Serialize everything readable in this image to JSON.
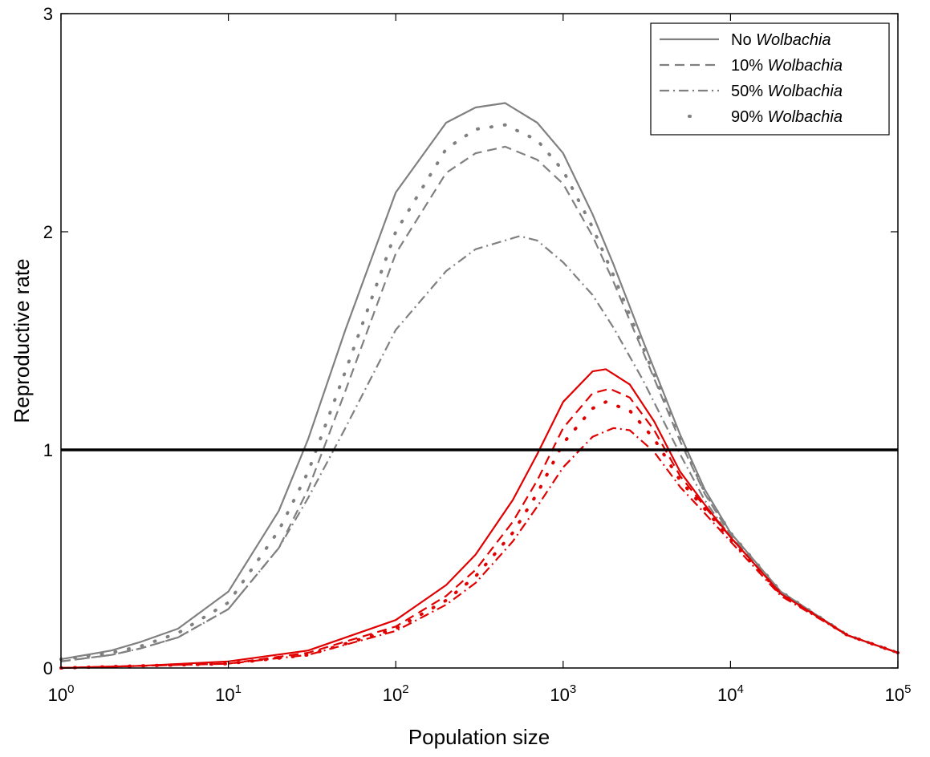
{
  "chart_data": {
    "type": "line",
    "xlabel": "Population size",
    "ylabel": "Reproductive rate",
    "xscale": "log",
    "xlim": [
      1,
      100000
    ],
    "ylim": [
      0,
      3
    ],
    "x_ticks": [
      {
        "base": "10",
        "exp": "0",
        "value": 1
      },
      {
        "base": "10",
        "exp": "1",
        "value": 10
      },
      {
        "base": "10",
        "exp": "2",
        "value": 100
      },
      {
        "base": "10",
        "exp": "3",
        "value": 1000
      },
      {
        "base": "10",
        "exp": "4",
        "value": 10000
      },
      {
        "base": "10",
        "exp": "5",
        "value": 100000
      }
    ],
    "y_ticks": [
      "0",
      "1",
      "2",
      "3"
    ],
    "grid": false,
    "legend_position": "top-right",
    "legend": [
      {
        "prefix": "No ",
        "italic": "Wolbachia",
        "style": "solid"
      },
      {
        "prefix": "10% ",
        "italic": "Wolbachia",
        "style": "dashed"
      },
      {
        "prefix": "50% ",
        "italic": "Wolbachia",
        "style": "dashdot"
      },
      {
        "prefix": "90% ",
        "italic": "Wolbachia",
        "style": "dotted"
      }
    ],
    "reference_line": {
      "y": 1,
      "color": "#000000"
    },
    "colors": {
      "gray": "#808080",
      "red": "#e00000"
    },
    "series": [
      {
        "color": "gray",
        "style": "solid",
        "x": [
          1,
          2,
          3,
          5,
          10,
          20,
          30,
          50,
          100,
          200,
          300,
          450,
          700,
          1000,
          1500,
          2000,
          3000,
          5000,
          7000,
          10000,
          20000,
          50000,
          100000
        ],
        "y": [
          0.04,
          0.08,
          0.12,
          0.18,
          0.35,
          0.72,
          1.05,
          1.55,
          2.18,
          2.5,
          2.57,
          2.59,
          2.5,
          2.36,
          2.08,
          1.85,
          1.5,
          1.07,
          0.82,
          0.62,
          0.35,
          0.15,
          0.07
        ]
      },
      {
        "color": "gray",
        "style": "dashed",
        "x": [
          1,
          2,
          3,
          5,
          10,
          20,
          30,
          50,
          100,
          200,
          300,
          450,
          700,
          1000,
          1500,
          2000,
          3000,
          5000,
          7000,
          10000,
          20000,
          50000,
          100000
        ],
        "y": [
          0.03,
          0.06,
          0.09,
          0.14,
          0.27,
          0.55,
          0.82,
          1.27,
          1.9,
          2.27,
          2.36,
          2.39,
          2.33,
          2.22,
          1.98,
          1.77,
          1.45,
          1.04,
          0.8,
          0.61,
          0.34,
          0.15,
          0.07
        ]
      },
      {
        "color": "gray",
        "style": "dashdot",
        "x": [
          1,
          2,
          3,
          5,
          10,
          20,
          30,
          50,
          100,
          200,
          300,
          550,
          700,
          1000,
          1500,
          2000,
          3000,
          5000,
          7000,
          10000,
          20000,
          50000,
          100000
        ],
        "y": [
          0.03,
          0.06,
          0.09,
          0.14,
          0.27,
          0.55,
          0.78,
          1.1,
          1.55,
          1.82,
          1.92,
          1.98,
          1.96,
          1.86,
          1.71,
          1.56,
          1.32,
          0.98,
          0.77,
          0.6,
          0.34,
          0.15,
          0.07
        ]
      },
      {
        "color": "gray",
        "style": "dotted",
        "x": [
          1,
          2,
          3,
          5,
          10,
          20,
          30,
          50,
          100,
          200,
          300,
          450,
          700,
          1000,
          1500,
          2000,
          3000,
          5000,
          7000,
          10000,
          20000,
          50000,
          100000
        ],
        "y": [
          0.04,
          0.07,
          0.1,
          0.16,
          0.3,
          0.63,
          0.9,
          1.36,
          2.0,
          2.38,
          2.47,
          2.49,
          2.42,
          2.28,
          2.02,
          1.8,
          1.47,
          1.05,
          0.81,
          0.62,
          0.35,
          0.15,
          0.07
        ]
      },
      {
        "color": "red",
        "style": "solid",
        "x": [
          1,
          3,
          10,
          30,
          100,
          200,
          300,
          500,
          700,
          1000,
          1500,
          1800,
          2500,
          3500,
          5000,
          7000,
          10000,
          20000,
          50000,
          100000
        ],
        "y": [
          0.0,
          0.01,
          0.03,
          0.08,
          0.22,
          0.38,
          0.52,
          0.77,
          0.98,
          1.22,
          1.36,
          1.37,
          1.3,
          1.13,
          0.9,
          0.75,
          0.6,
          0.34,
          0.15,
          0.07
        ]
      },
      {
        "color": "red",
        "style": "dashed",
        "x": [
          1,
          3,
          10,
          30,
          100,
          200,
          300,
          500,
          700,
          1000,
          1500,
          1900,
          2500,
          3500,
          5000,
          7000,
          10000,
          20000,
          50000,
          100000
        ],
        "y": [
          0.0,
          0.01,
          0.02,
          0.07,
          0.19,
          0.33,
          0.45,
          0.67,
          0.86,
          1.1,
          1.26,
          1.28,
          1.24,
          1.09,
          0.88,
          0.74,
          0.6,
          0.34,
          0.15,
          0.07
        ]
      },
      {
        "color": "red",
        "style": "dashdot",
        "x": [
          1,
          3,
          10,
          30,
          100,
          200,
          300,
          500,
          700,
          1000,
          1500,
          2000,
          2500,
          3500,
          5000,
          7000,
          10000,
          20000,
          50000,
          100000
        ],
        "y": [
          0.0,
          0.01,
          0.02,
          0.06,
          0.17,
          0.29,
          0.39,
          0.58,
          0.74,
          0.92,
          1.06,
          1.1,
          1.09,
          0.99,
          0.83,
          0.71,
          0.58,
          0.33,
          0.15,
          0.07
        ]
      },
      {
        "color": "red",
        "style": "dotted",
        "x": [
          1,
          3,
          10,
          30,
          100,
          200,
          300,
          500,
          700,
          1000,
          1500,
          1800,
          2500,
          3500,
          5000,
          7000,
          10000,
          20000,
          50000,
          100000
        ],
        "y": [
          0.0,
          0.01,
          0.02,
          0.06,
          0.18,
          0.31,
          0.42,
          0.62,
          0.8,
          1.03,
          1.19,
          1.22,
          1.18,
          1.05,
          0.86,
          0.73,
          0.59,
          0.34,
          0.15,
          0.07
        ]
      }
    ]
  }
}
